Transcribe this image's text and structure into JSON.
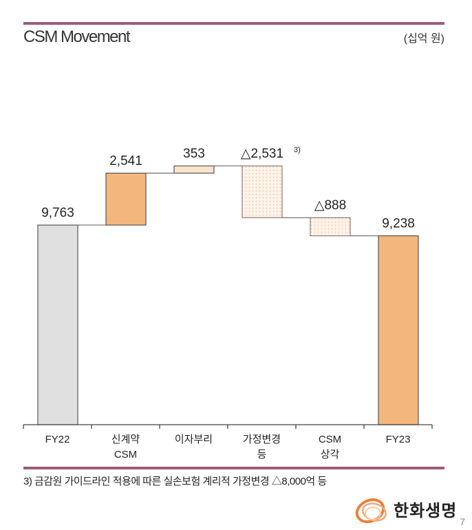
{
  "header": {
    "title": "CSM Movement",
    "unit": "(십억 원)"
  },
  "colors": {
    "rule": "#9e5a80",
    "start_bar": "#e0e0e0",
    "increase_strong": "#f3b67c",
    "increase_light": "#fbe3cb",
    "decrease_fill": "#fdf3ea",
    "decrease_dot": "#f2c9a8",
    "end_bar": "#f3b67c"
  },
  "chart_data": {
    "type": "bar",
    "subtype": "waterfall",
    "title": "CSM Movement",
    "unit": "십억 원",
    "categories": [
      "FY22",
      "신계약 CSM",
      "이자부리",
      "가정변경 등",
      "CSM 상각",
      "FY23"
    ],
    "category_lines": [
      [
        "FY22"
      ],
      [
        "신계약",
        "CSM"
      ],
      [
        "이자부리"
      ],
      [
        "가정변경",
        "등"
      ],
      [
        "CSM",
        "상각"
      ],
      [
        "FY23"
      ]
    ],
    "values": [
      9763,
      2541,
      353,
      -2531,
      -888,
      9238
    ],
    "kinds": [
      "total",
      "increase",
      "increase",
      "decrease",
      "decrease",
      "total"
    ],
    "labels": [
      "9,763",
      "2,541",
      "353",
      "△2,531",
      "△888",
      "9,238"
    ],
    "label_superscripts": [
      "",
      "",
      "",
      "3)",
      "",
      ""
    ],
    "running_totals": [
      9763,
      12304,
      12657,
      10126,
      9238,
      9238
    ],
    "xlabel": "",
    "ylabel": "",
    "grid": false,
    "legend": false
  },
  "footnote": "3) 금감원 가이드라인 적용에 따른 실손보험 계리적 가정변경 △8,000억 등",
  "logo": {
    "text": "한화생명",
    "icon": "hanwha-rings-icon"
  },
  "page_number": "7"
}
